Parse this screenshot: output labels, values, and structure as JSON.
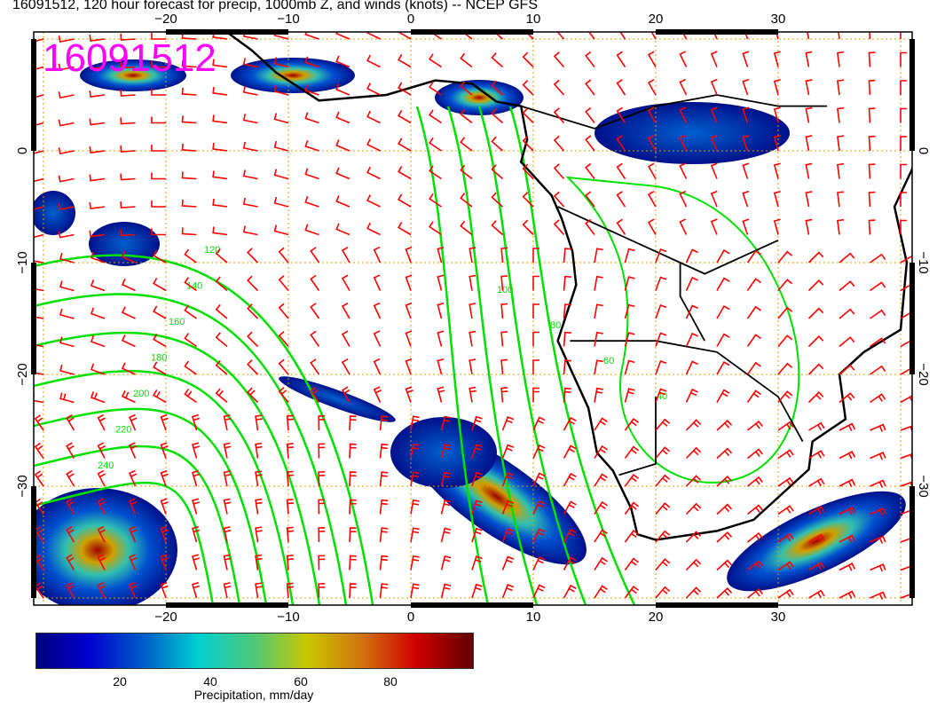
{
  "title": "16091512, 120 hour forecast for precip, 1000mb Z, and winds (knots) -- NCEP GFS",
  "stamp": "16091512",
  "map": {
    "lon_range": [
      -31,
      41
    ],
    "lat_range": [
      -40.6,
      10.6
    ],
    "lon_ticks": [
      "−20",
      "−10",
      "0",
      "10",
      "20",
      "30"
    ],
    "lat_ticks": [
      "0",
      "−10",
      "−20",
      "−30"
    ],
    "grid": "dotted",
    "colors": {
      "grid": "#e0a000",
      "contour": "#00e000",
      "barbs": "#ff0000",
      "coast": "#000000",
      "stamp": "#ff00ff"
    },
    "contour_labels": [
      "120",
      "140",
      "160",
      "180",
      "200",
      "220",
      "240",
      "100",
      "80",
      "60",
      "40"
    ]
  },
  "colorbar": {
    "ticks": [
      "20",
      "40",
      "60",
      "80"
    ],
    "title": "Precipitation, mm/day"
  }
}
